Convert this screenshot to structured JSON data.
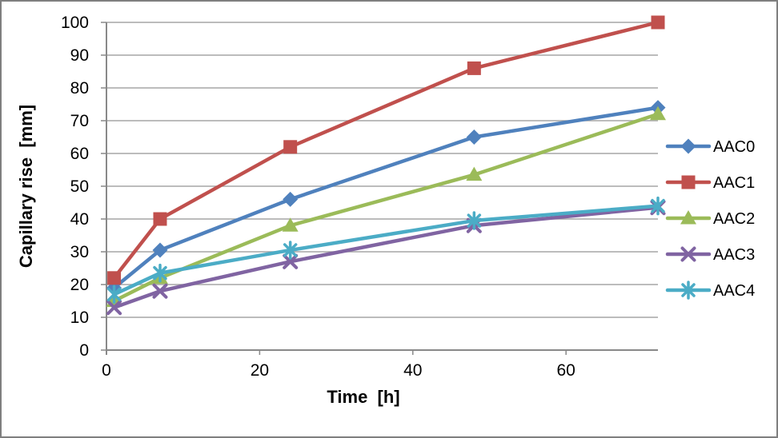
{
  "chart_data": {
    "type": "line",
    "x": [
      1,
      7,
      24,
      48,
      72
    ],
    "series": [
      {
        "name": "AAC0",
        "marker": "diamond",
        "color": "#4F81BD",
        "values": [
          19,
          30.5,
          46,
          65,
          74
        ]
      },
      {
        "name": "AAC1",
        "marker": "square",
        "color": "#C0504D",
        "values": [
          22,
          40,
          62,
          86,
          100
        ]
      },
      {
        "name": "AAC2",
        "marker": "triangle",
        "color": "#9BBB59",
        "values": [
          15,
          22,
          38,
          53.5,
          72
        ]
      },
      {
        "name": "AAC3",
        "marker": "x",
        "color": "#8064A2",
        "values": [
          13,
          18,
          27,
          38,
          43.5
        ]
      },
      {
        "name": "AAC4",
        "marker": "asterisk",
        "color": "#4BACC6",
        "values": [
          17,
          23.5,
          30.5,
          39.5,
          44
        ]
      }
    ],
    "title": "",
    "xlabel": "Time  [h]",
    "ylabel": "Capillary rise  [mm]",
    "xlim": [
      0,
      72
    ],
    "ylim": [
      0,
      100
    ],
    "x_ticks": [
      0,
      20,
      40,
      60
    ],
    "y_ticks": [
      0,
      10,
      20,
      30,
      40,
      50,
      60,
      70,
      80,
      90,
      100
    ],
    "grid": true,
    "legend_position": "right"
  },
  "colors": {
    "gridline": "#A6A6A6",
    "axis_line": "#898989",
    "text": "#000000",
    "frame_border": "#7F7F7F",
    "background": "#FFFFFF"
  }
}
